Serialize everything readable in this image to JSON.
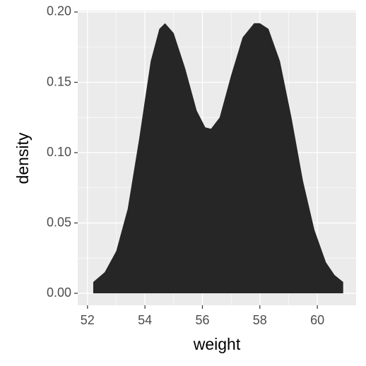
{
  "chart_data": {
    "type": "area",
    "x_label": "weight",
    "y_label": "density",
    "x": [
      52.2,
      52.6,
      53.0,
      53.4,
      53.8,
      54.2,
      54.5,
      54.7,
      55.0,
      55.4,
      55.8,
      56.1,
      56.3,
      56.6,
      57.0,
      57.4,
      57.8,
      58.0,
      58.3,
      58.7,
      59.1,
      59.5,
      59.9,
      60.3,
      60.6,
      60.9
    ],
    "values": [
      0.008,
      0.015,
      0.03,
      0.06,
      0.11,
      0.165,
      0.188,
      0.192,
      0.185,
      0.16,
      0.13,
      0.118,
      0.117,
      0.125,
      0.155,
      0.182,
      0.192,
      0.192,
      0.188,
      0.165,
      0.125,
      0.08,
      0.045,
      0.022,
      0.013,
      0.008
    ],
    "color": "#262626",
    "xlim": [
      51.66,
      61.35
    ],
    "xticks": [
      52,
      54,
      56,
      58,
      60
    ],
    "ylim": [
      -0.0085,
      0.201
    ],
    "yticks": [
      {
        "value": 0,
        "label": "0.00"
      },
      0.05,
      {
        "value": 0.1,
        "label": "0.10"
      },
      0.15,
      {
        "value": 0.2,
        "label": "0.20"
      }
    ],
    "grid": true
  }
}
